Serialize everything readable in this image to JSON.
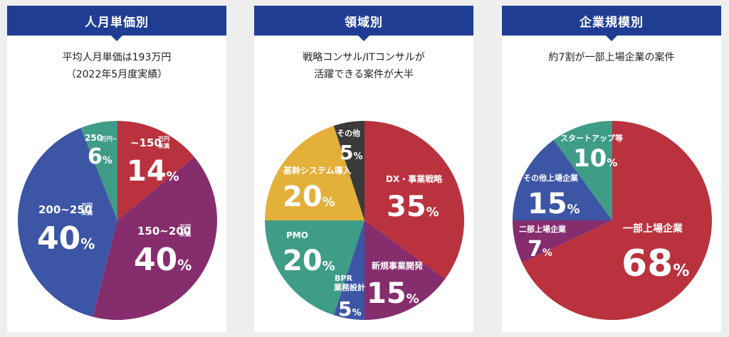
{
  "colors": {
    "header": "#1f3e93",
    "red": "#b9323d",
    "purple": "#862d6e",
    "blue": "#3c56a5",
    "teal": "#3f9c87",
    "yellow": "#e3b03a",
    "dark": "#3a3a3a"
  },
  "chart_data": [
    {
      "type": "pie",
      "title": "人月単価別",
      "subtitle_lines": [
        "平均人月単価は193万円",
        "（2022年5月度実績）"
      ],
      "slices": [
        {
          "label": "~150",
          "unit": "万円",
          "unit2": "未満",
          "value": 14,
          "color": "red"
        },
        {
          "label": "150~200",
          "unit": "万円",
          "unit2": "未満",
          "value": 40,
          "color": "purple"
        },
        {
          "label": "200~250",
          "unit": "万円",
          "unit2": "未満",
          "value": 40,
          "color": "blue"
        },
        {
          "label": "250",
          "unit": "万円~",
          "unit2": "",
          "value": 6,
          "color": "teal"
        }
      ]
    },
    {
      "type": "pie",
      "title": "領域別",
      "subtitle_lines": [
        "戦略コンサル/ITコンサルが",
        "活躍できる案件が大半"
      ],
      "slices": [
        {
          "label": "DX・事業戦略",
          "value": 35,
          "color": "red"
        },
        {
          "label": "新規事業開発",
          "value": 15,
          "color": "purple"
        },
        {
          "label": "BPR 業務設計",
          "value": 5,
          "color": "blue"
        },
        {
          "label": "PMO",
          "value": 20,
          "color": "teal"
        },
        {
          "label": "基幹システム導入",
          "value": 20,
          "color": "yellow"
        },
        {
          "label": "その他",
          "value": 5,
          "color": "dark"
        }
      ]
    },
    {
      "type": "pie",
      "title": "企業規模別",
      "subtitle_lines": [
        "約7割が一部上場企業の案件"
      ],
      "slices": [
        {
          "label": "一部上場企業",
          "value": 68,
          "color": "red"
        },
        {
          "label": "二部上場企業",
          "value": 7,
          "color": "purple"
        },
        {
          "label": "その他上場企業",
          "value": 15,
          "color": "blue"
        },
        {
          "label": "スタートアップ等",
          "value": 10,
          "color": "teal"
        }
      ]
    }
  ]
}
